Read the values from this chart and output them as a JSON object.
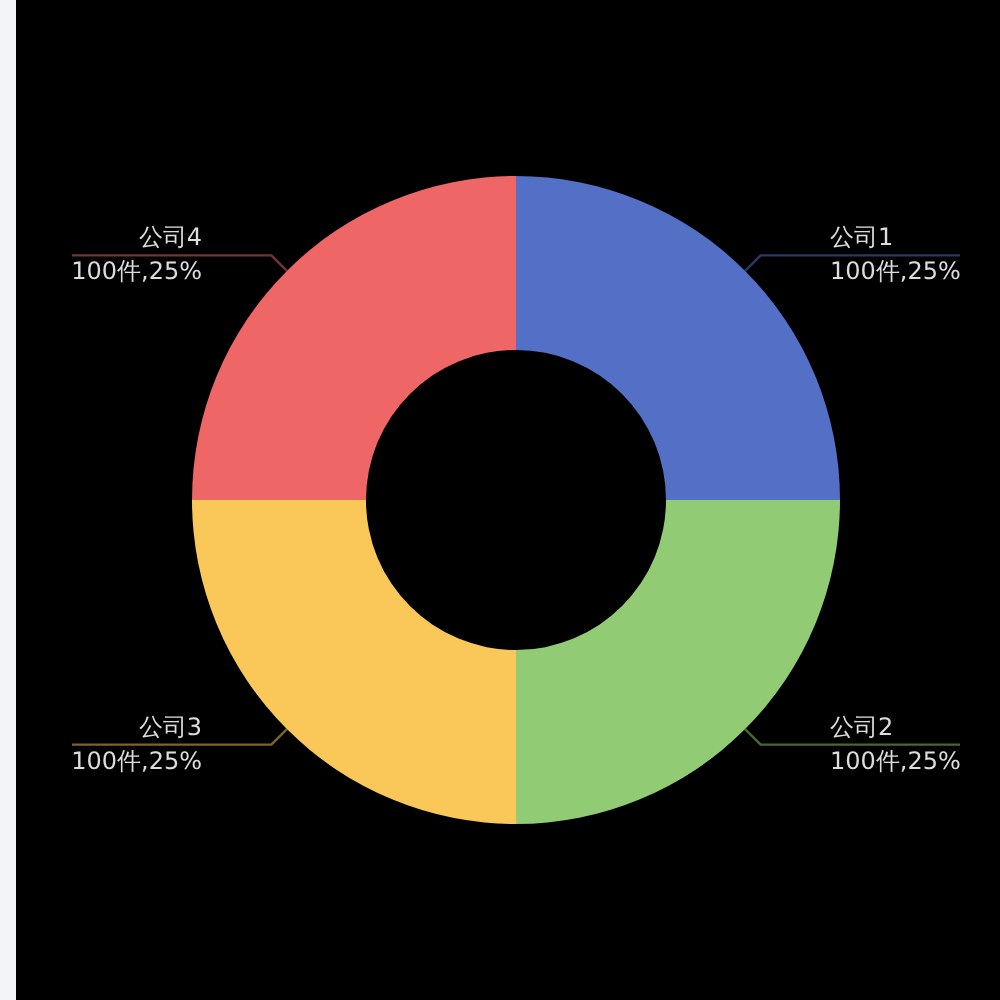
{
  "chart_data": {
    "type": "donut",
    "categories": [
      "公司1",
      "公司2",
      "公司3",
      "公司4"
    ],
    "values": [
      100,
      100,
      100,
      100
    ],
    "colors": [
      "#5470c6",
      "#91cc75",
      "#fac858",
      "#ee6666"
    ],
    "value_labels": [
      "100件,25%",
      "100件,25%",
      "100件,25%",
      "100件,25%"
    ]
  }
}
